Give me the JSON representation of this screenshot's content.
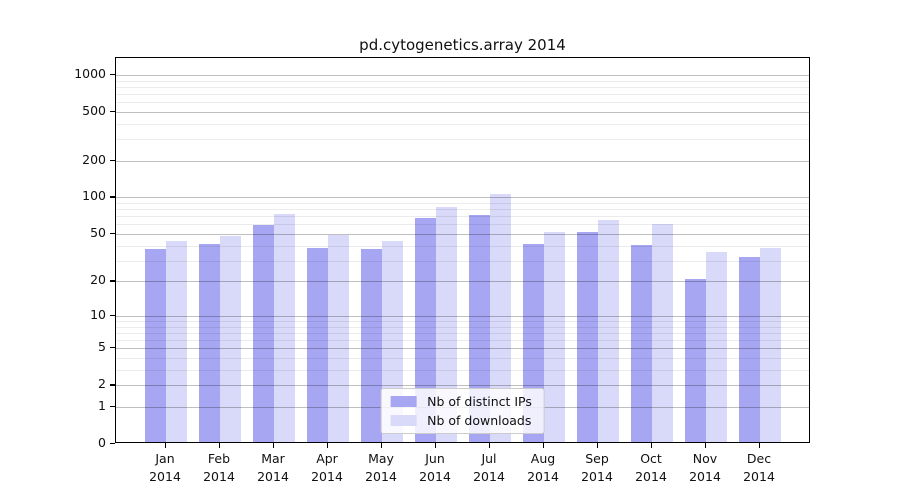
{
  "chart_data": {
    "type": "bar",
    "title": "pd.cytogenetics.array 2014",
    "categories": [
      "Jan",
      "Feb",
      "Mar",
      "Apr",
      "May",
      "Jun",
      "Jul",
      "Aug",
      "Sep",
      "Oct",
      "Nov",
      "Dec"
    ],
    "category_year": "2014",
    "series": [
      {
        "name": "Nb of distinct IPs",
        "color": "#a6a6f2",
        "values": [
          36,
          40,
          57,
          37,
          36,
          65,
          69,
          40,
          50,
          39,
          20,
          31
        ]
      },
      {
        "name": "Nb of downloads",
        "color": "#d9d9f9",
        "values": [
          42,
          46,
          71,
          47,
          42,
          81,
          103,
          50,
          63,
          58,
          34,
          37
        ]
      }
    ],
    "y_scale": "log10(1+v)",
    "y_ticks": [
      0,
      1,
      2,
      5,
      10,
      20,
      50,
      100,
      200,
      500,
      1000
    ],
    "y_minor_ticks": [
      3,
      4,
      6,
      7,
      8,
      9,
      30,
      40,
      60,
      70,
      80,
      90,
      300,
      400,
      600,
      700,
      800,
      900
    ],
    "ylim_top": 1373,
    "grid": true,
    "legend_position": "lower center"
  }
}
